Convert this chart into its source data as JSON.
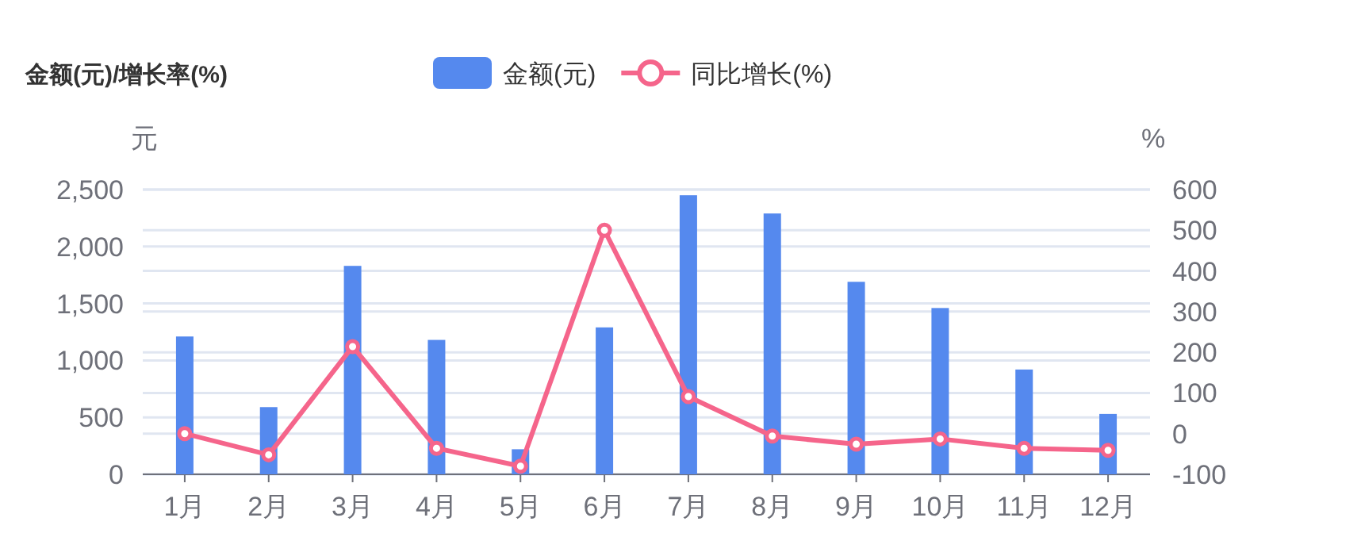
{
  "chart_data": {
    "type": "bar",
    "title": "金额(元)/增长率(%)",
    "ylabel": "元",
    "y2label": "%",
    "categories": [
      "1月",
      "2月",
      "3月",
      "4月",
      "5月",
      "6月",
      "7月",
      "8月",
      "9月",
      "10月",
      "11月",
      "12月"
    ],
    "series": [
      {
        "name": "金额(元)",
        "color": "#5589ee",
        "values": [
          1210,
          590,
          1830,
          1180,
          220,
          1290,
          2450,
          2290,
          1690,
          1460,
          920,
          530
        ]
      },
      {
        "name": "同比增长(%)",
        "type": "line",
        "axis": "y2",
        "color": "#f5658b",
        "marker": "circle",
        "values": [
          0,
          -52,
          214,
          -36,
          -80,
          500,
          91,
          -6,
          -26,
          -13,
          -36,
          -41
        ]
      }
    ],
    "ylim": [
      0,
      2500
    ],
    "yticks": [
      {
        "value": 0,
        "label": "0"
      },
      {
        "value": 500,
        "label": "500"
      },
      {
        "value": 1000,
        "label": "1,000"
      },
      {
        "value": 1500,
        "label": "1,500"
      },
      {
        "value": 2000,
        "label": "2,000"
      },
      {
        "value": 2500,
        "label": "2,500"
      }
    ],
    "y2lim": [
      -100,
      600
    ],
    "y2ticks": [
      -100,
      0,
      100,
      200,
      300,
      400,
      500,
      600
    ],
    "grid": true,
    "legend": "top"
  }
}
